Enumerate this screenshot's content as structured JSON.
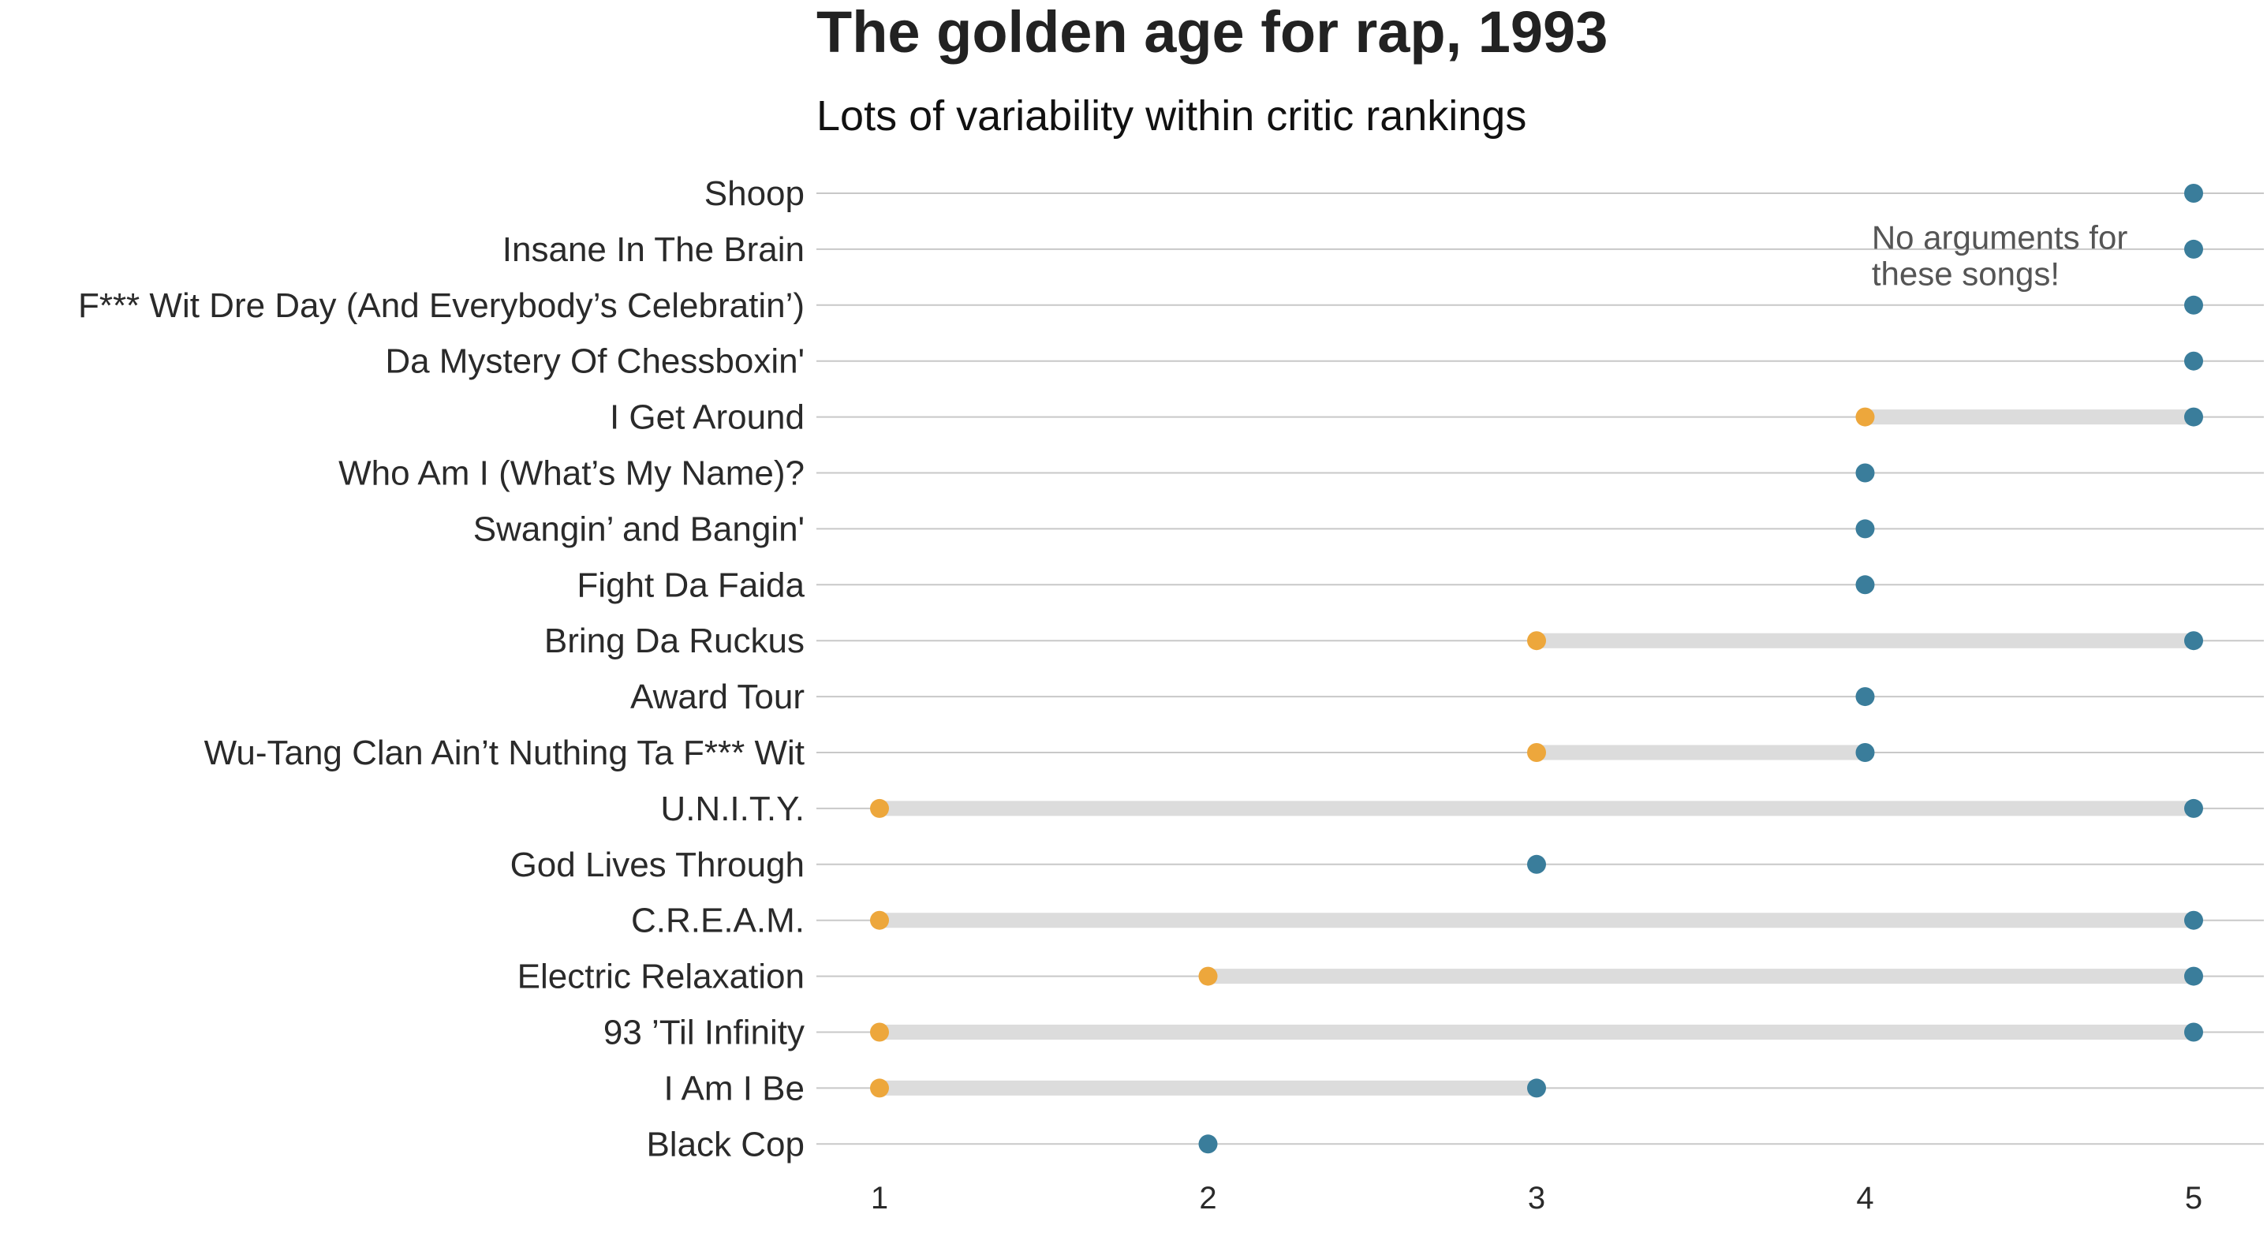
{
  "chart_data": {
    "type": "dumbbell",
    "title": "The golden age for rap, 1993",
    "subtitle": "Lots of variability within critic rankings",
    "xlabel": "",
    "ylabel": "",
    "xlim": [
      0.8,
      5.2
    ],
    "x_ticks": [
      1,
      2,
      3,
      4,
      5
    ],
    "grid": "horizontal",
    "colors": {
      "min": "#EDA73C",
      "max": "#3A7D9B",
      "segment": "#DCDCDC",
      "grid": "#C8C8C8"
    },
    "annotation": {
      "lines": [
        "No arguments for",
        "these songs!"
      ],
      "x": 4.02,
      "row": 1.5
    },
    "rows": [
      {
        "song": "Shoop",
        "min": 5,
        "max": 5
      },
      {
        "song": "Insane In The Brain",
        "min": 5,
        "max": 5
      },
      {
        "song": "F*** Wit Dre Day (And Everybody’s Celebratin’)",
        "min": 5,
        "max": 5
      },
      {
        "song": "Da Mystery Of Chessboxin'",
        "min": 5,
        "max": 5
      },
      {
        "song": "I Get Around",
        "min": 4,
        "max": 5
      },
      {
        "song": "Who Am I (What’s My Name)?",
        "min": 4,
        "max": 4
      },
      {
        "song": "Swangin’ and Bangin'",
        "min": 4,
        "max": 4
      },
      {
        "song": "Fight Da Faida",
        "min": 4,
        "max": 4
      },
      {
        "song": "Bring Da Ruckus",
        "min": 3,
        "max": 5
      },
      {
        "song": "Award Tour",
        "min": 4,
        "max": 4
      },
      {
        "song": "Wu-Tang Clan Ain’t Nuthing Ta F*** Wit",
        "min": 3,
        "max": 4
      },
      {
        "song": "U.N.I.T.Y.",
        "min": 1,
        "max": 5
      },
      {
        "song": "God Lives Through",
        "min": 3,
        "max": 3
      },
      {
        "song": "C.R.E.A.M.",
        "min": 1,
        "max": 5
      },
      {
        "song": "Electric Relaxation",
        "min": 2,
        "max": 5
      },
      {
        "song": "93 ’Til Infinity",
        "min": 1,
        "max": 5
      },
      {
        "song": "I Am I Be",
        "min": 1,
        "max": 3
      },
      {
        "song": "Black Cop",
        "min": 2,
        "max": 2
      }
    ]
  }
}
